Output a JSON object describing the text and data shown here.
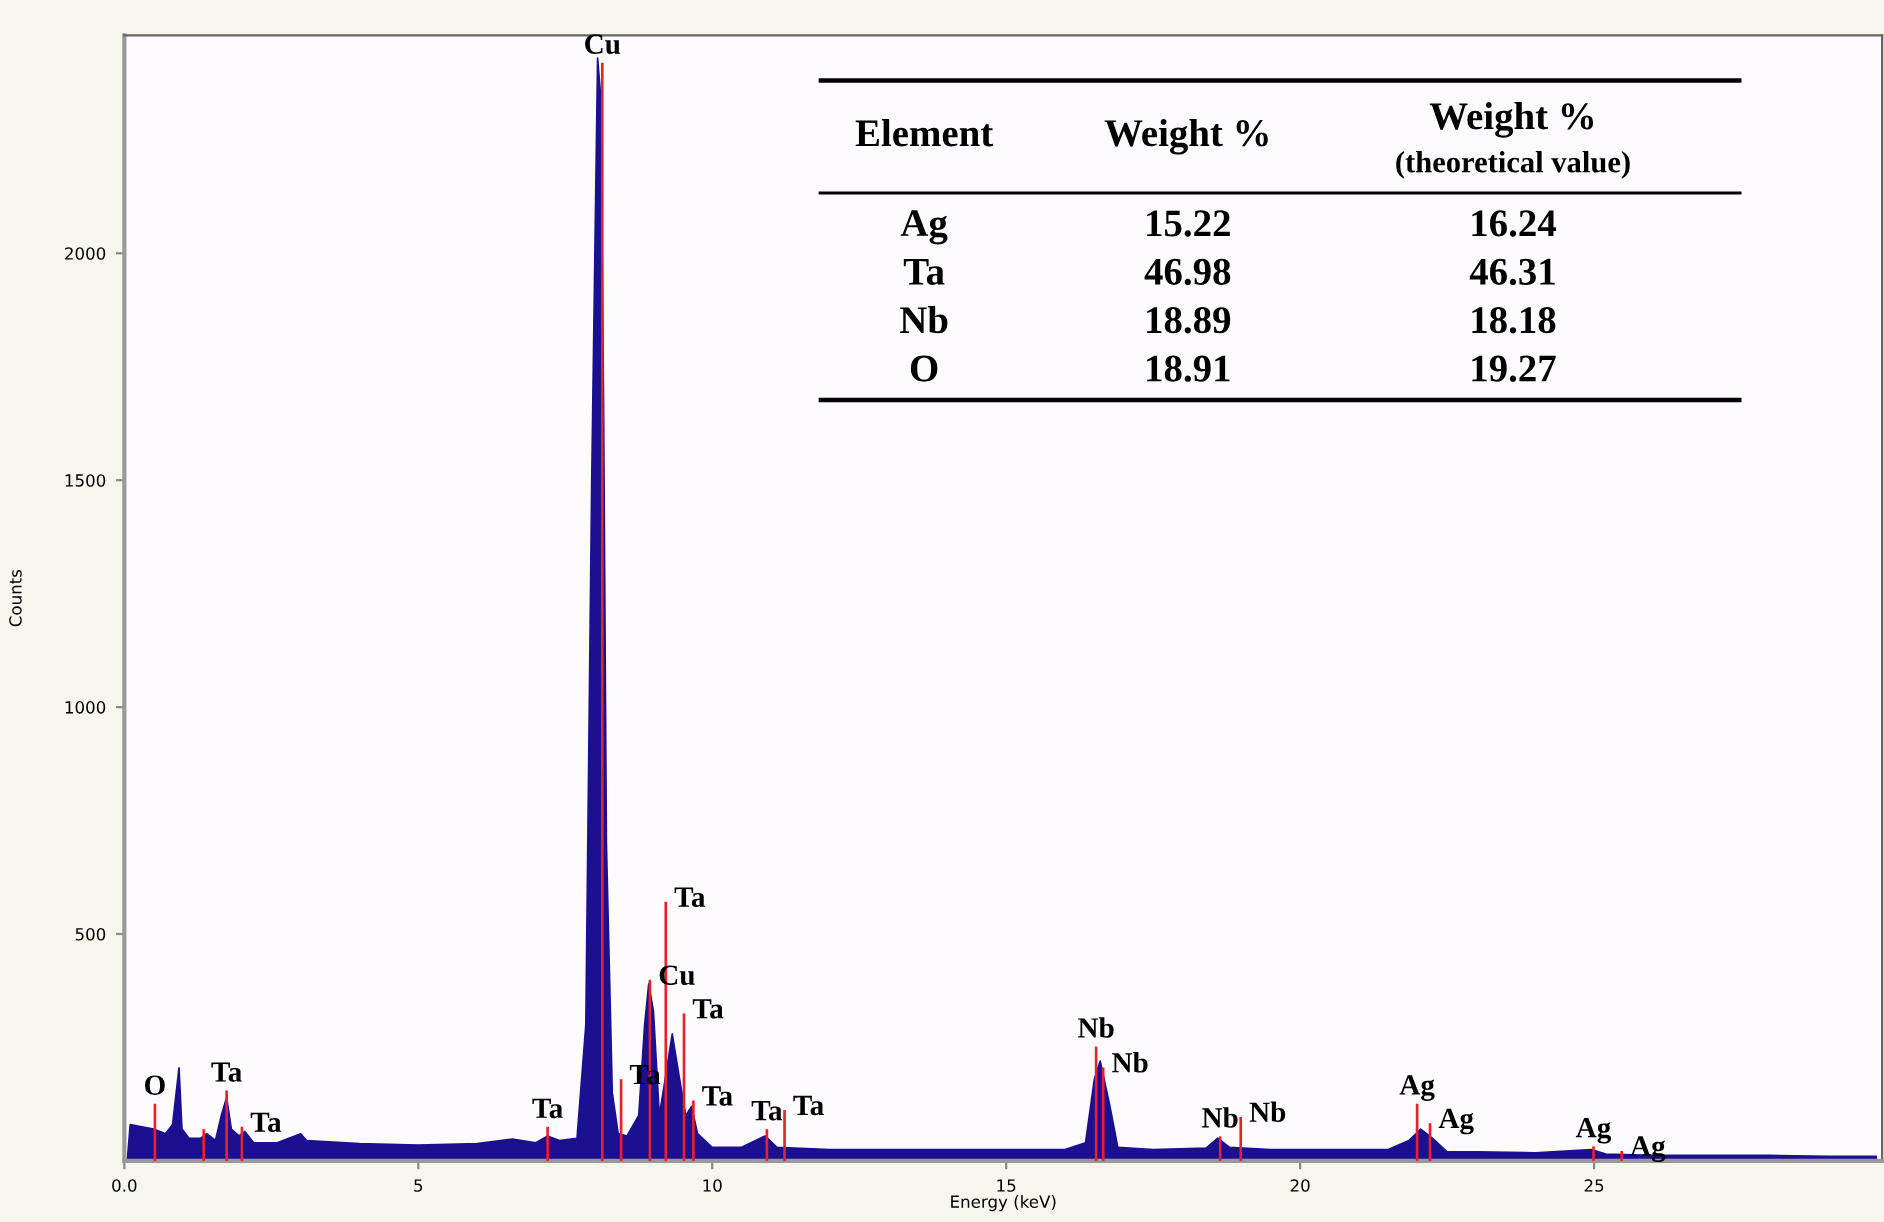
{
  "chart_data": {
    "type": "area",
    "xlabel": "Energy (keV)",
    "ylabel": "Counts",
    "xlim": [
      0,
      29.9
    ],
    "ylim": [
      0,
      2480
    ],
    "xticks": [
      {
        "value": 0,
        "label": "0.0"
      },
      5,
      10,
      15,
      20,
      25
    ],
    "yticks": [
      500,
      1000,
      1500,
      2000
    ],
    "grid": false,
    "series": [
      {
        "color": "#1a1090",
        "x": [
          0.05,
          0.1,
          0.3,
          0.5,
          0.7,
          0.82,
          0.93,
          0.98,
          1.1,
          1.3,
          1.4,
          1.55,
          1.65,
          1.74,
          1.82,
          1.95,
          2.05,
          2.2,
          2.6,
          3.0,
          3.1,
          4,
          5,
          6,
          6.6,
          7.0,
          7.2,
          7.4,
          7.7,
          7.85,
          7.95,
          8.02,
          8.05,
          8.1,
          8.15,
          8.2,
          8.3,
          8.4,
          8.55,
          8.75,
          8.85,
          8.92,
          9.0,
          9.1,
          9.2,
          9.32,
          9.42,
          9.55,
          9.65,
          9.75,
          10.0,
          10.5,
          10.9,
          11.1,
          12,
          13,
          14,
          15,
          16,
          16.35,
          16.5,
          16.6,
          16.75,
          16.9,
          17.5,
          18.4,
          18.6,
          18.8,
          19.5,
          20.5,
          21.5,
          21.85,
          22.05,
          22.25,
          22.5,
          23,
          24,
          24.95,
          25.2,
          26,
          27,
          28,
          29,
          29.8
        ],
        "values": [
          0,
          80,
          75,
          70,
          60,
          80,
          205,
          70,
          50,
          50,
          60,
          45,
          100,
          140,
          70,
          55,
          65,
          40,
          40,
          60,
          45,
          38,
          35,
          38,
          48,
          40,
          55,
          45,
          50,
          300,
          1500,
          2150,
          2430,
          2350,
          1700,
          700,
          150,
          60,
          55,
          100,
          300,
          390,
          330,
          100,
          180,
          280,
          200,
          100,
          120,
          60,
          30,
          30,
          55,
          30,
          25,
          25,
          25,
          25,
          25,
          40,
          180,
          220,
          130,
          30,
          25,
          28,
          50,
          30,
          25,
          25,
          25,
          45,
          70,
          50,
          20,
          20,
          18,
          25,
          15,
          12,
          12,
          12,
          10,
          10
        ]
      },
      {
        "type": "bar",
        "color": "#e8202a",
        "x": [
          0.52,
          1.35,
          1.74,
          2.0,
          7.2,
          8.13,
          8.45,
          8.94,
          9.21,
          9.52,
          9.68,
          10.93,
          11.23,
          16.53,
          16.65,
          18.64,
          18.99,
          21.99,
          22.21,
          24.99,
          25.47
        ],
        "values": [
          126,
          70,
          155,
          75,
          75,
          2420,
          180,
          399,
          571,
          325,
          133,
          70,
          112,
          252,
          206,
          54,
          97,
          126,
          83,
          32,
          22
        ]
      }
    ],
    "annotations": [
      {
        "text": "O",
        "x": 0.52,
        "y": 126
      },
      {
        "text": "Ta",
        "x": 1.74,
        "y": 155
      },
      {
        "text": "Ta",
        "x": 2.0,
        "y": 75
      },
      {
        "text": "Ta",
        "x": 7.2,
        "y": 75
      },
      {
        "text": "Cu",
        "x": 8.13,
        "y": 2420
      },
      {
        "text": "Ta",
        "x": 8.45,
        "y": 180
      },
      {
        "text": "Cu",
        "x": 8.94,
        "y": 399
      },
      {
        "text": "Ta",
        "x": 9.21,
        "y": 571
      },
      {
        "text": "Ta",
        "x": 9.52,
        "y": 325
      },
      {
        "text": "Ta",
        "x": 9.68,
        "y": 133
      },
      {
        "text": "Ta",
        "x": 10.93,
        "y": 70
      },
      {
        "text": "Ta",
        "x": 11.23,
        "y": 112
      },
      {
        "text": "Nb",
        "x": 16.53,
        "y": 252
      },
      {
        "text": "Nb",
        "x": 16.65,
        "y": 206
      },
      {
        "text": "Nb",
        "x": 18.64,
        "y": 54
      },
      {
        "text": "Nb",
        "x": 18.99,
        "y": 97
      },
      {
        "text": "Ag",
        "x": 21.99,
        "y": 126
      },
      {
        "text": "Ag",
        "x": 22.21,
        "y": 83
      },
      {
        "text": "Ag",
        "x": 24.99,
        "y": 32
      },
      {
        "text": "Ag",
        "x": 25.47,
        "y": 22
      },
      "Element",
      "Weight %",
      "Weight %\n(theoretical value)",
      "Ag",
      "15.22",
      "16.24",
      "Ta",
      "46.98",
      "46.31",
      "Nb",
      "18.89",
      "18.18",
      "O",
      "18.91",
      "19.27"
    ]
  }
}
